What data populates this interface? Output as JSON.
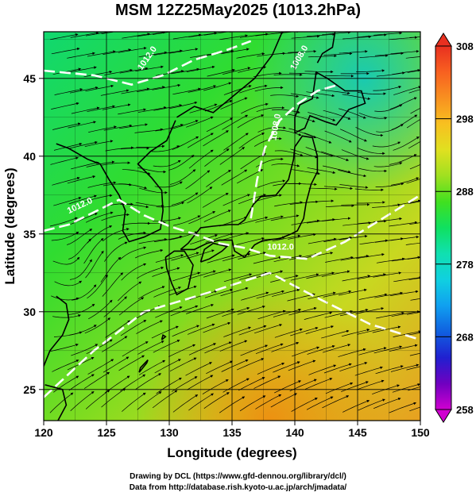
{
  "title": "MSM 12Z25May2025 (1013.2hPa)",
  "axes": {
    "xlabel": "Longitude (degrees)",
    "ylabel": "Latitude  (degrees)",
    "xticks": [
      "120",
      "125",
      "130",
      "135",
      "140",
      "145",
      "150"
    ],
    "yticks": [
      "25",
      "30",
      "35",
      "40",
      "45"
    ],
    "xrange": [
      120,
      150
    ],
    "yrange": [
      23,
      48
    ]
  },
  "colorbar": {
    "ticks": [
      "308",
      "298",
      "288",
      "278",
      "268",
      "258"
    ],
    "range": [
      258,
      308
    ],
    "colors": [
      "#d000d0",
      "#7000c0",
      "#2020d0",
      "#1060e0",
      "#10a0f0",
      "#10d0e0",
      "#10e0b0",
      "#10e060",
      "#40e020",
      "#a0e020",
      "#e0e020",
      "#f8c020",
      "#f89020",
      "#f86020",
      "#e83020"
    ]
  },
  "contours": {
    "labels": [
      "1012.0",
      "1012.0",
      "1012.0",
      "1008.0",
      "1008.0"
    ],
    "color": "#ffffff"
  },
  "credits": {
    "line1": "Drawing by DCL (https://www.gfd-dennou.org/library/dcl/)",
    "line2": "Data from http://database.rish.kyoto-u.ac.jp/arch/jmadata/"
  }
}
